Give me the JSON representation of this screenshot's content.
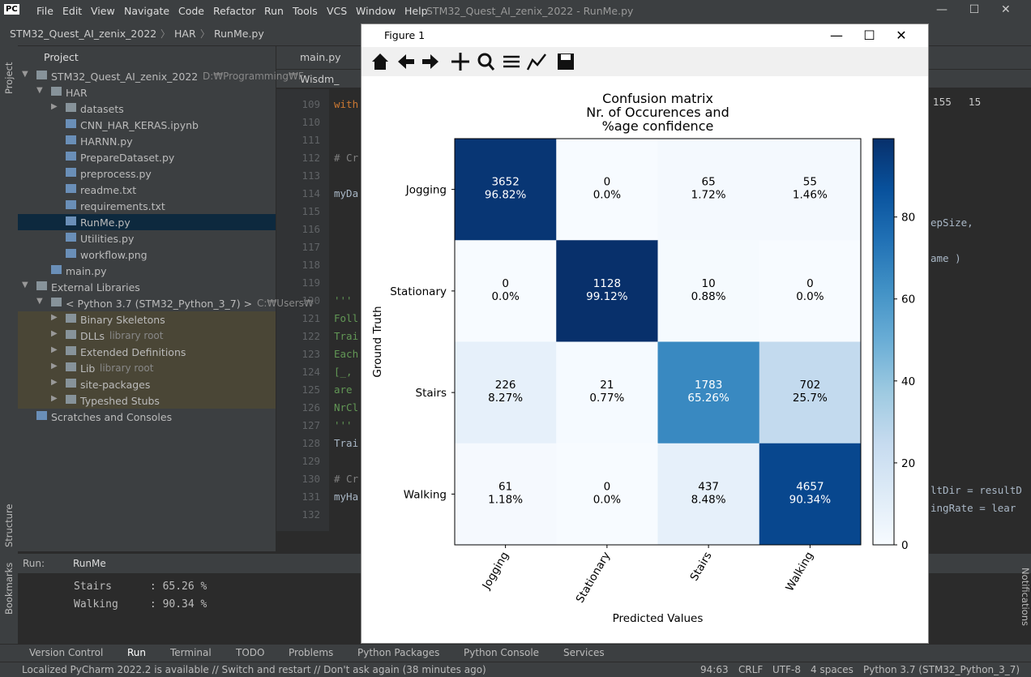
{
  "title_bar": {
    "app_icon": "PC",
    "menus": [
      "File",
      "Edit",
      "View",
      "Navigate",
      "Code",
      "Refactor",
      "Run",
      "Tools",
      "VCS",
      "Window",
      "Help"
    ],
    "window_title": "STM32_Quest_AI_zenix_2022 - RunMe.py"
  },
  "breadcrumb": [
    "STM32_Quest_AI_zenix_2022",
    "HAR",
    "RunMe.py"
  ],
  "side_strip": {
    "left": [
      "Project",
      "Structure",
      "Bookmarks"
    ],
    "right": "Notifications"
  },
  "project": {
    "header": "Project",
    "tree": [
      {
        "label": "STM32_Quest_AI_zenix_2022",
        "hint": "D:₩Programming₩F",
        "depth": 0,
        "folder": true,
        "open": true
      },
      {
        "label": "HAR",
        "depth": 1,
        "folder": true,
        "open": true
      },
      {
        "label": "datasets",
        "depth": 2,
        "folder": true,
        "open": false
      },
      {
        "label": "CNN_HAR_KERAS.ipynb",
        "depth": 2
      },
      {
        "label": "HARNN.py",
        "depth": 2
      },
      {
        "label": "PrepareDataset.py",
        "depth": 2
      },
      {
        "label": "preprocess.py",
        "depth": 2
      },
      {
        "label": "readme.txt",
        "depth": 2
      },
      {
        "label": "requirements.txt",
        "depth": 2
      },
      {
        "label": "RunMe.py",
        "depth": 2,
        "selected": true
      },
      {
        "label": "Utilities.py",
        "depth": 2
      },
      {
        "label": "workflow.png",
        "depth": 2
      },
      {
        "label": "main.py",
        "depth": 1
      },
      {
        "label": "External Libraries",
        "depth": 0,
        "folder": true,
        "open": true
      },
      {
        "label": "< Python 3.7 (STM32_Python_3_7) >",
        "hint": "C:₩Users₩",
        "depth": 1,
        "folder": true,
        "open": true
      },
      {
        "label": "Binary Skeletons",
        "depth": 2,
        "folder": true,
        "open": false,
        "library": true
      },
      {
        "label": "DLLs",
        "hint": "library root",
        "depth": 2,
        "folder": true,
        "open": false,
        "library": true
      },
      {
        "label": "Extended Definitions",
        "depth": 2,
        "folder": true,
        "open": false,
        "library": true
      },
      {
        "label": "Lib",
        "hint": "library root",
        "depth": 2,
        "folder": true,
        "open": false,
        "library": true
      },
      {
        "label": "site-packages",
        "depth": 2,
        "folder": true,
        "open": false,
        "library": true
      },
      {
        "label": "Typeshed Stubs",
        "depth": 2,
        "folder": true,
        "open": false,
        "library": true
      },
      {
        "label": "Scratches and Consoles",
        "depth": 0
      }
    ]
  },
  "editor": {
    "tab": "main.py",
    "search": "Wisdm_",
    "lines": [
      {
        "n": 109,
        "code": "with",
        "style": "keyword"
      },
      {
        "n": 110
      },
      {
        "n": 111
      },
      {
        "n": 112,
        "code": "# Cr",
        "style": "comment"
      },
      {
        "n": 113
      },
      {
        "n": 114,
        "code": "myDa"
      },
      {
        "n": 115
      },
      {
        "n": 116
      },
      {
        "n": 117
      },
      {
        "n": 118
      },
      {
        "n": 119
      },
      {
        "n": 120,
        "code": "'''",
        "style": "doc"
      },
      {
        "n": 121,
        "code": "Foll",
        "style": "doc"
      },
      {
        "n": 122,
        "code": "Trai",
        "style": "doc"
      },
      {
        "n": 123,
        "code": "Each",
        "style": "doc"
      },
      {
        "n": 124,
        "code": "[_,",
        "style": "doc"
      },
      {
        "n": 125,
        "code": "are",
        "style": "doc"
      },
      {
        "n": 126,
        "code": "NrCl",
        "style": "doc"
      },
      {
        "n": 127,
        "code": "'''",
        "style": "doc"
      },
      {
        "n": 128,
        "code": "Trai"
      },
      {
        "n": 129
      },
      {
        "n": 130,
        "code": "# Cr",
        "style": "comment"
      },
      {
        "n": 131,
        "code": "myHa"
      },
      {
        "n": 132
      }
    ],
    "inspections": [
      "155",
      "15"
    ],
    "right_fragments": [
      {
        "line": 116,
        "code": "epSize,"
      },
      {
        "line": 118,
        "code": "ame )"
      },
      {
        "line": 131,
        "code": "ltDir = resultD"
      },
      {
        "line": 132,
        "code": "ingRate = lear"
      }
    ]
  },
  "figure_window": {
    "title": "Figure 1"
  },
  "chart_data": {
    "type": "heatmap",
    "title": "Confusion matrix\nNr. of Occurences and\n%age confidence",
    "x_label": "Predicted Values",
    "y_label": "Ground Truth",
    "x_categories": [
      "Jogging",
      "Stationary",
      "Stairs",
      "Walking"
    ],
    "y_categories": [
      "Jogging",
      "Stationary",
      "Stairs",
      "Walking"
    ],
    "counts": [
      [
        3652,
        0,
        65,
        55
      ],
      [
        0,
        1128,
        10,
        0
      ],
      [
        226,
        21,
        1783,
        702
      ],
      [
        61,
        0,
        437,
        4657
      ]
    ],
    "values": [
      [
        96.82,
        0,
        1.72,
        1.46
      ],
      [
        0,
        99.12,
        0.88,
        0
      ],
      [
        8.27,
        0.77,
        65.26,
        25.7
      ],
      [
        1.18,
        0,
        8.48,
        90.34
      ]
    ],
    "value_labels": [
      [
        "96.82%",
        "0.0%",
        "1.72%",
        "1.46%"
      ],
      [
        "0.0%",
        "99.12%",
        "0.88%",
        "0.0%"
      ],
      [
        "8.27%",
        "0.77%",
        "65.26%",
        "25.7%"
      ],
      [
        "1.18%",
        "0.0%",
        "8.48%",
        "90.34%"
      ]
    ],
    "clim": [
      0,
      99.12
    ],
    "colorbar_ticks": [
      0,
      20,
      40,
      60,
      80
    ],
    "colormap": [
      "#f7fbff",
      "#deebf7",
      "#c6dbef",
      "#9ecae1",
      "#6baed6",
      "#4292c6",
      "#2171b5",
      "#08519c",
      "#08306b"
    ]
  },
  "run_panel": {
    "label": "Run:",
    "tab": "RunMe",
    "output": [
      "Stairs      : 65.26 %",
      "Walking     : 90.34 %"
    ]
  },
  "bottom_tabs": [
    "Version Control",
    "Run",
    "Terminal",
    "TODO",
    "Problems",
    "Python Packages",
    "Python Console",
    "Services"
  ],
  "status_bar": {
    "message": "Localized PyCharm 2022.2 is available // Switch and restart // Don't ask again (38 minutes ago)",
    "items": [
      "94:63",
      "CRLF",
      "UTF-8",
      "4 spaces",
      "Python 3.7 (STM32_Python_3_7)"
    ]
  }
}
